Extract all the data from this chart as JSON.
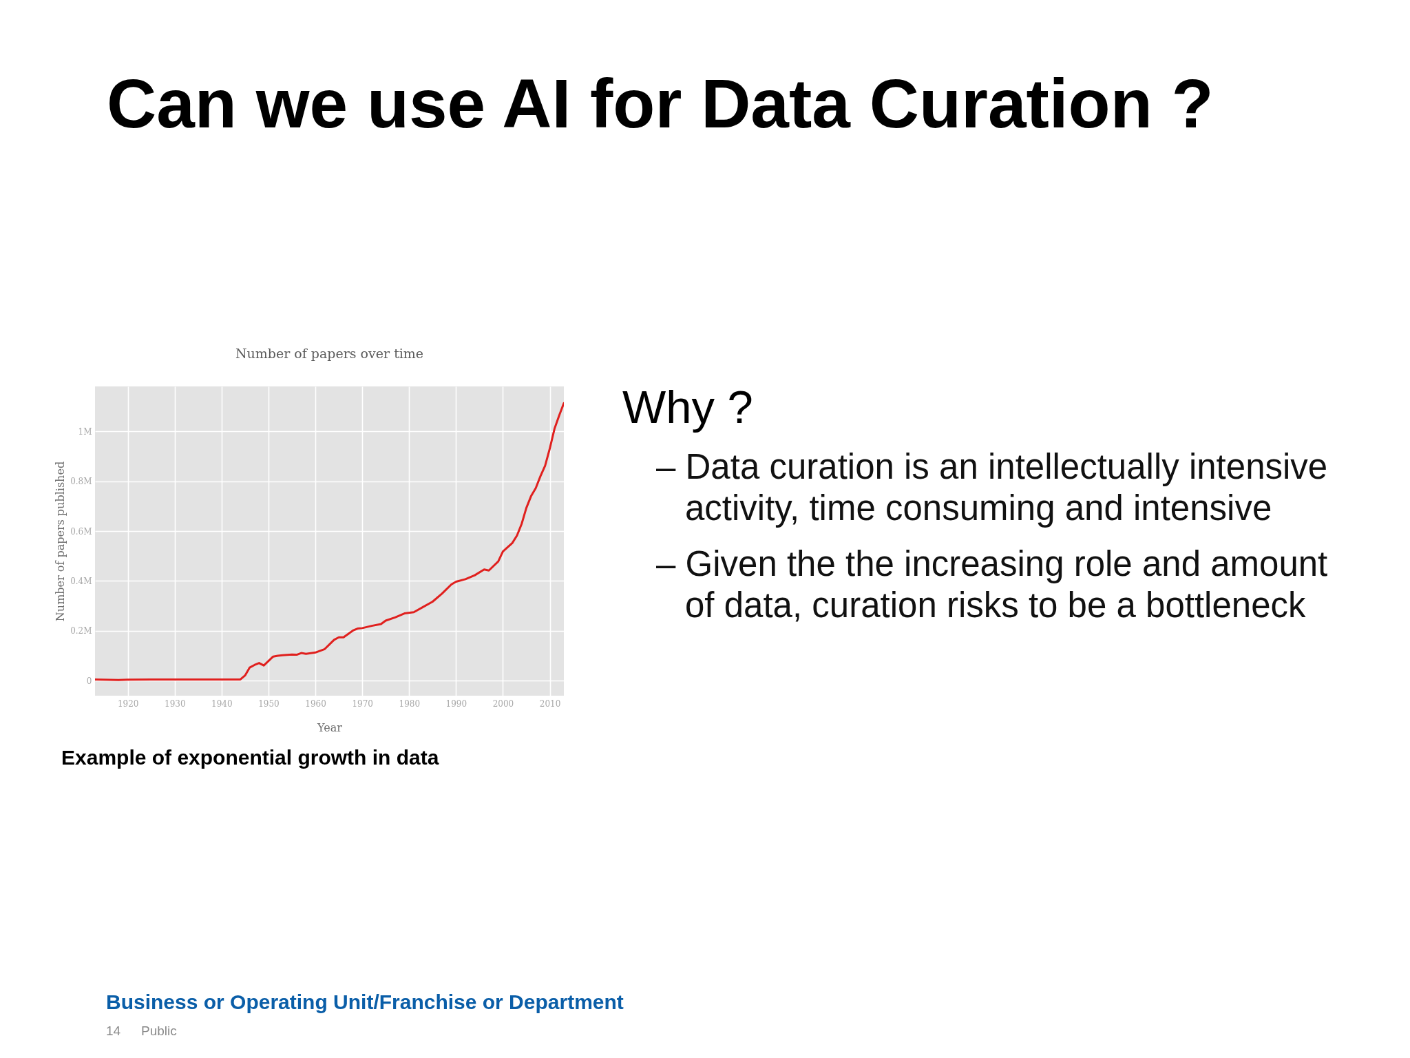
{
  "chart_data": {
    "type": "line",
    "title": "Can we use AI for Data Curation ?",
    "subtitle": "Number of papers over time",
    "xlabel": "Year",
    "ylabel": "Number of papers published",
    "x": [
      1913,
      1918,
      1920,
      1925,
      1930,
      1944,
      1945,
      1946,
      1947,
      1948,
      1949,
      1950,
      1951,
      1952,
      1953,
      1955,
      1956,
      1957,
      1958,
      1960,
      1962,
      1964,
      1965,
      1966,
      1968,
      1969,
      1970,
      1972,
      1974,
      1975,
      1977,
      1979,
      1981,
      1983,
      1985,
      1987,
      1989,
      1990,
      1992,
      1994,
      1996,
      1997,
      1999,
      2000,
      2002,
      2003,
      2004,
      2005,
      2006,
      2007,
      2008,
      2009,
      2010,
      2011,
      2012,
      2013
    ],
    "series": [
      {
        "color": "#e0201e",
        "values": [
          5000,
          3000,
          4000,
          5000,
          5000,
          5000,
          21000,
          53000,
          63000,
          71000,
          61000,
          79000,
          97000,
          100000,
          102000,
          105000,
          104000,
          111000,
          108000,
          113000,
          127000,
          164000,
          174000,
          174000,
          201000,
          209000,
          211000,
          220000,
          227000,
          241000,
          254000,
          270000,
          275000,
          296000,
          317000,
          349000,
          386000,
          397000,
          407000,
          423000,
          446000,
          442000,
          478000,
          518000,
          552000,
          582000,
          629000,
          693000,
          740000,
          772000,
          820000,
          862000,
          931000,
          1010000,
          1063000,
          1113000
        ]
      }
    ],
    "xlim": [
      1913,
      2013
    ],
    "xticks": [
      1920,
      1930,
      1940,
      1950,
      1960,
      1970,
      1980,
      1990,
      2000,
      2010
    ],
    "ylim": [
      -60000,
      1180000
    ],
    "yticks": [
      0,
      {
        "value": 200000,
        "label": "0.2M"
      },
      {
        "value": 400000,
        "label": "0.4M"
      },
      {
        "value": 600000,
        "label": "0.6M"
      },
      {
        "value": 800000,
        "label": "0.8M"
      },
      {
        "value": 1000000,
        "label": "1M"
      }
    ],
    "grid": true,
    "annotations": [
      "Why ?",
      "– Data curation is an intellectually intensive activity, time consuming and intensive",
      "– Given the the increasing role and amount of data, curation risks to be a bottleneck",
      "Example of exponential growth in data",
      "Business or Operating Unit/Franchise or Department",
      "14",
      "Public"
    ]
  }
}
